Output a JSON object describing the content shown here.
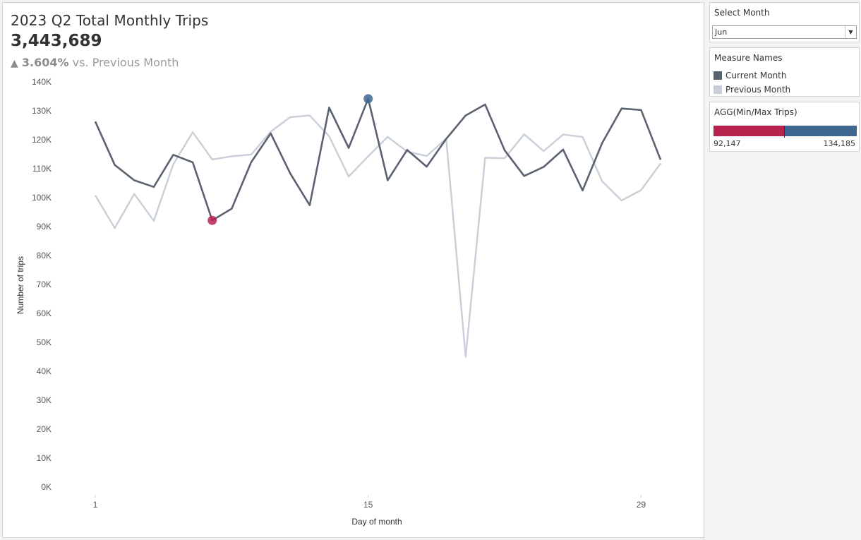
{
  "header": {
    "title": "2023 Q2 Total Monthly Trips",
    "total": "3,443,689",
    "delta_arrow": "▲",
    "delta_pct": "3.604%",
    "delta_text": " vs. Previous Month"
  },
  "filter": {
    "title": "Select Month",
    "selected": "Jun"
  },
  "legend": {
    "title": "Measure Names",
    "items": [
      {
        "label": "Current Month",
        "color": "#5a6270"
      },
      {
        "label": "Previous Month",
        "color": "#c9cfd9"
      }
    ]
  },
  "range": {
    "title": "AGG(Min/Max Trips)",
    "min_label": "92,147",
    "max_label": "134,185",
    "min": 92147,
    "max": 134185,
    "min_color": "#b8234e",
    "max_color": "#3d6690"
  },
  "chart_data": {
    "type": "line",
    "xlabel": "Day of month",
    "ylabel": "Number of trips",
    "xlim": [
      0,
      31
    ],
    "ylim": [
      0,
      140000
    ],
    "x_ticks": [
      1,
      15,
      29
    ],
    "y_ticks": [
      {
        "value": 0,
        "label": "0K"
      },
      {
        "value": 10000,
        "label": "10K"
      },
      {
        "value": 20000,
        "label": "20K"
      },
      {
        "value": 30000,
        "label": "30K"
      },
      {
        "value": 40000,
        "label": "40K"
      },
      {
        "value": 50000,
        "label": "50K"
      },
      {
        "value": 60000,
        "label": "60K"
      },
      {
        "value": 70000,
        "label": "70K"
      },
      {
        "value": 80000,
        "label": "80K"
      },
      {
        "value": 90000,
        "label": "90K"
      },
      {
        "value": 100000,
        "label": "100K"
      },
      {
        "value": 110000,
        "label": "110K"
      },
      {
        "value": 120000,
        "label": "120K"
      },
      {
        "value": 130000,
        "label": "130K"
      },
      {
        "value": 140000,
        "label": "140K"
      }
    ],
    "grid": false,
    "legend_position": "right",
    "series": [
      {
        "name": "Previous Month",
        "color": "#c9cfd9",
        "x": [
          1,
          2,
          3,
          4,
          5,
          6,
          7,
          8,
          9,
          10,
          11,
          12,
          13,
          14,
          15,
          16,
          17,
          18,
          19,
          20,
          21,
          22,
          23,
          24,
          25,
          26,
          27,
          28,
          29,
          30
        ],
        "values": [
          100800,
          89500,
          101300,
          92000,
          111500,
          122600,
          113200,
          114300,
          114900,
          122800,
          127800,
          128400,
          121200,
          107300,
          114300,
          121000,
          115900,
          114400,
          120400,
          45000,
          113800,
          113600,
          121900,
          116100,
          121800,
          121000,
          105700,
          99000,
          102600,
          111800
        ]
      },
      {
        "name": "Current Month",
        "color": "#5a6270",
        "x": [
          1,
          2,
          3,
          4,
          5,
          6,
          7,
          8,
          9,
          10,
          11,
          12,
          13,
          14,
          15,
          16,
          17,
          18,
          19,
          20,
          21,
          22,
          23,
          24,
          25,
          26,
          27,
          28,
          29,
          30
        ],
        "values": [
          126300,
          111300,
          106000,
          103700,
          114800,
          112200,
          92147,
          96200,
          112300,
          122200,
          108400,
          97400,
          131100,
          117200,
          134185,
          106000,
          116500,
          110700,
          120300,
          128400,
          132200,
          116400,
          107500,
          110600,
          116600,
          102500,
          118800,
          130800,
          130300,
          113100
        ]
      }
    ],
    "markers": [
      {
        "name": "Min",
        "x": 7,
        "y": 92147,
        "color": "#b8234e"
      },
      {
        "name": "Max",
        "x": 15,
        "y": 134185,
        "color": "#3d6690"
      }
    ]
  }
}
